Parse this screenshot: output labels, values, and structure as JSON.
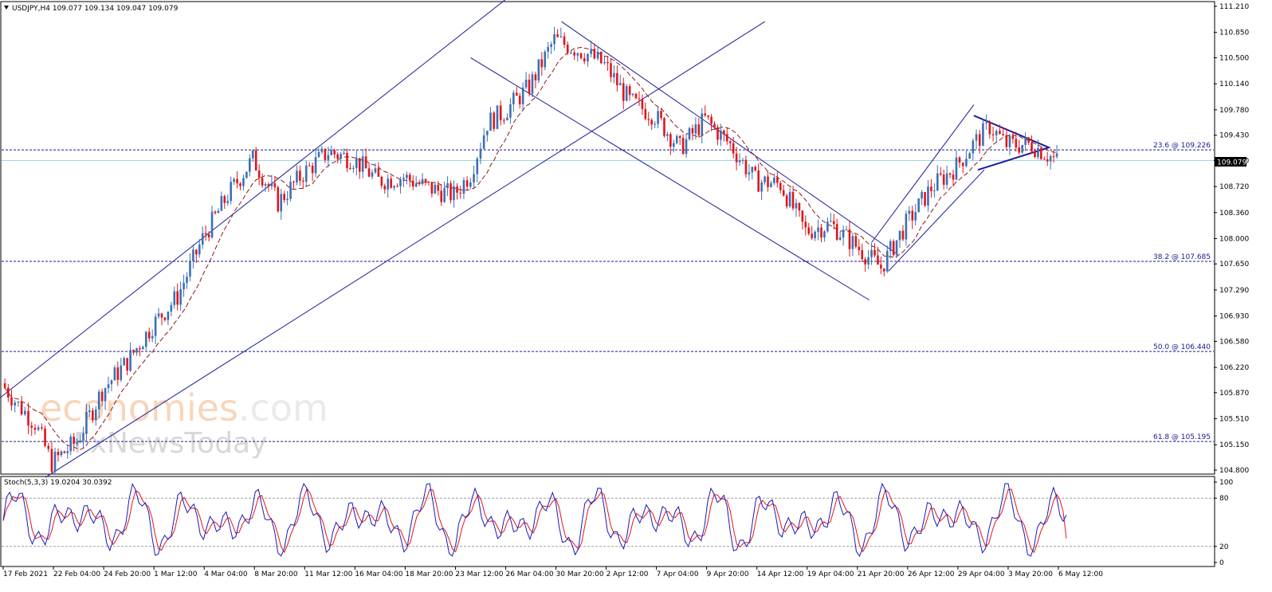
{
  "header": {
    "symbol": "USDJPY,H4",
    "ohlc": "109.077 109.134 109.047 109.079"
  },
  "watermark": {
    "brand_a": "econo",
    "brand_b": "mies",
    "brand_c": ".com",
    "sub": "FxNewsToday"
  },
  "colors": {
    "bull": "#3d6fb6",
    "bear": "#e0151a",
    "channel": "#1c1c9c",
    "ma": "#8b1a1a",
    "fib": "#1a1a8c",
    "price_line": "#9fd4e6",
    "stoch_main": "#1a1ab4",
    "stoch_signal": "#e0151a"
  },
  "price_tag": "109.079",
  "stoch_header": "Stoch(5,3,3) 19.0204 30.0392",
  "chart_data": {
    "type": "candlestick",
    "title": "USDJPY,H4",
    "ylim": [
      104.8,
      111.21
    ],
    "y_ticks": [
      "111.210",
      "110.850",
      "110.500",
      "110.140",
      "109.780",
      "109.430",
      "109.080",
      "108.720",
      "108.360",
      "108.000",
      "107.650",
      "107.290",
      "106.930",
      "106.580",
      "106.220",
      "105.870",
      "105.510",
      "105.150",
      "104.800"
    ],
    "x_ticks": [
      "17 Feb 2021",
      "22 Feb 04:00",
      "24 Feb 20:00",
      "1 Mar 12:00",
      "4 Mar 04:00",
      "8 Mar 20:00",
      "11 Mar 12:00",
      "16 Mar 04:00",
      "18 Mar 20:00",
      "23 Mar 12:00",
      "26 Mar 04:00",
      "30 Mar 20:00",
      "2 Apr 12:00",
      "7 Apr 04:00",
      "9 Apr 20:00",
      "14 Apr 12:00",
      "19 Apr 04:00",
      "21 Apr 20:00",
      "26 Apr 12:00",
      "29 Apr 04:00",
      "3 May 20:00",
      "6 May 12:00"
    ],
    "close_path": [
      {
        "x": "17 Feb 2021",
        "close": 106.0
      },
      {
        "x": "18 Feb",
        "close": 105.7
      },
      {
        "x": "19 Feb",
        "close": 105.45
      },
      {
        "x": "22 Feb 04:00",
        "close": 104.9
      },
      {
        "x": "23 Feb",
        "close": 105.2
      },
      {
        "x": "24 Feb 20:00",
        "close": 105.9
      },
      {
        "x": "26 Feb",
        "close": 106.3
      },
      {
        "x": "1 Mar 12:00",
        "close": 106.8
      },
      {
        "x": "3 Mar",
        "close": 107.2
      },
      {
        "x": "4 Mar 04:00",
        "close": 108.0
      },
      {
        "x": "5 Mar",
        "close": 108.6
      },
      {
        "x": "8 Mar 20:00",
        "close": 109.1
      },
      {
        "x": "9 Mar",
        "close": 108.5
      },
      {
        "x": "11 Mar 12:00",
        "close": 108.9
      },
      {
        "x": "12 Mar",
        "close": 109.2
      },
      {
        "x": "16 Mar 04:00",
        "close": 109.1
      },
      {
        "x": "17 Mar",
        "close": 108.8
      },
      {
        "x": "18 Mar 20:00",
        "close": 108.85
      },
      {
        "x": "22 Mar",
        "close": 108.7
      },
      {
        "x": "23 Mar 12:00",
        "close": 108.6
      },
      {
        "x": "24 Mar",
        "close": 108.9
      },
      {
        "x": "25 Mar",
        "close": 109.6
      },
      {
        "x": "26 Mar 04:00",
        "close": 109.75
      },
      {
        "x": "29 Mar",
        "close": 110.1
      },
      {
        "x": "30 Mar 20:00",
        "close": 110.75
      },
      {
        "x": "31 Mar",
        "close": 110.65
      },
      {
        "x": "1 Apr",
        "close": 110.55
      },
      {
        "x": "2 Apr 12:00",
        "close": 110.4
      },
      {
        "x": "5 Apr",
        "close": 109.9
      },
      {
        "x": "7 Apr 04:00",
        "close": 109.7
      },
      {
        "x": "8 Apr",
        "close": 109.25
      },
      {
        "x": "9 Apr 20:00",
        "close": 109.65
      },
      {
        "x": "12 Apr",
        "close": 109.3
      },
      {
        "x": "14 Apr 12:00",
        "close": 108.8
      },
      {
        "x": "16 Apr",
        "close": 108.75
      },
      {
        "x": "19 Apr 04:00",
        "close": 108.1
      },
      {
        "x": "20 Apr",
        "close": 108.2
      },
      {
        "x": "21 Apr 20:00",
        "close": 107.9
      },
      {
        "x": "23 Apr",
        "close": 107.6
      },
      {
        "x": "26 Apr 12:00",
        "close": 108.2
      },
      {
        "x": "27 Apr",
        "close": 108.7
      },
      {
        "x": "29 Apr 04:00",
        "close": 109.0
      },
      {
        "x": "30 Apr",
        "close": 109.3
      },
      {
        "x": "2 May",
        "close": 109.55
      },
      {
        "x": "3 May 20:00",
        "close": 109.3
      },
      {
        "x": "5 May",
        "close": 109.3
      },
      {
        "x": "6 May 12:00",
        "close": 109.079
      }
    ],
    "fib_levels": [
      {
        "label": "23.6 @ 109.226",
        "value": 109.226
      },
      {
        "label": "38.2 @ 107.685",
        "value": 107.685
      },
      {
        "label": "50.0 @ 106.440",
        "value": 106.44
      },
      {
        "label": "61.8 @ 105.195",
        "value": 105.195
      }
    ],
    "current_price": 109.079,
    "stochastic": {
      "label": "Stoch(5,3,3) 19.0204 30.0392",
      "main": 19.0204,
      "signal": 30.0392,
      "ylim": [
        0,
        100
      ],
      "y_ticks": [
        "100",
        "80",
        "20",
        "0"
      ],
      "levels": [
        80,
        20
      ]
    },
    "grid": false
  }
}
